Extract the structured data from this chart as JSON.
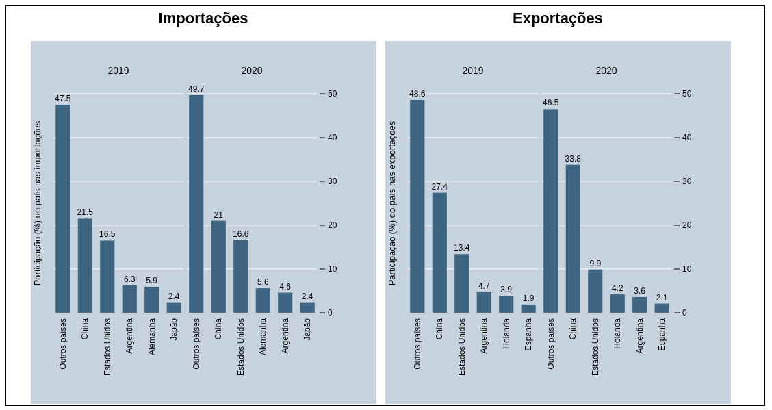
{
  "chart_data": [
    {
      "type": "bar",
      "title": "Importações",
      "subtitle": "2019",
      "ylabel": "Participação (%) do país nas importações",
      "categories": [
        "Outros países",
        "China",
        "Estados Unidos",
        "Argentina",
        "Alemanha",
        "Japão"
      ],
      "values": [
        47.5,
        21.5,
        16.5,
        6.3,
        5.9,
        2.4
      ],
      "color": "#3d6480",
      "ylim": [
        0,
        50
      ],
      "yticks": [
        0,
        10,
        20,
        30,
        40,
        50
      ],
      "grid": "y",
      "data_labels": true,
      "tick_labels": "x"
    },
    {
      "type": "bar",
      "subtitle": "2020",
      "categories": [
        "Outros países",
        "China",
        "Estados Unidos",
        "Alemanha",
        "Argentina",
        "Japão"
      ],
      "values": [
        49.7,
        21,
        16.6,
        5.6,
        4.6,
        2.4
      ],
      "color": "#3d6480",
      "ylim": [
        0,
        50
      ],
      "yticks": [
        0,
        10,
        20,
        30,
        40,
        50
      ],
      "grid": "y",
      "data_labels": true
    },
    {
      "type": "bar",
      "title": "Exportações",
      "subtitle": "2019",
      "ylabel": "Participação (%) do país nas exportações",
      "categories": [
        "Outros países",
        "China",
        "Estados Unidos",
        "Argentina",
        "Holanda",
        "Espanha"
      ],
      "values": [
        48.6,
        27.4,
        13.4,
        4.7,
        3.9,
        1.9
      ],
      "color": "#3d6480",
      "ylim": [
        0,
        50
      ],
      "yticks": [
        0,
        10,
        20,
        30,
        40,
        50
      ],
      "grid": "y",
      "data_labels": true,
      "tick_labels": "x"
    },
    {
      "type": "bar",
      "subtitle": "2020",
      "categories": [
        "Outros países",
        "China",
        "Estados Unidos",
        "Holanda",
        "Argentina",
        "Espanha"
      ],
      "values": [
        46.5,
        33.8,
        9.9,
        4.2,
        3.6,
        2.1
      ],
      "color": "#3d6480",
      "ylim": [
        0,
        50
      ],
      "yticks": [
        0,
        10,
        20,
        30,
        40,
        50
      ],
      "grid": "y",
      "data_labels": true
    }
  ]
}
